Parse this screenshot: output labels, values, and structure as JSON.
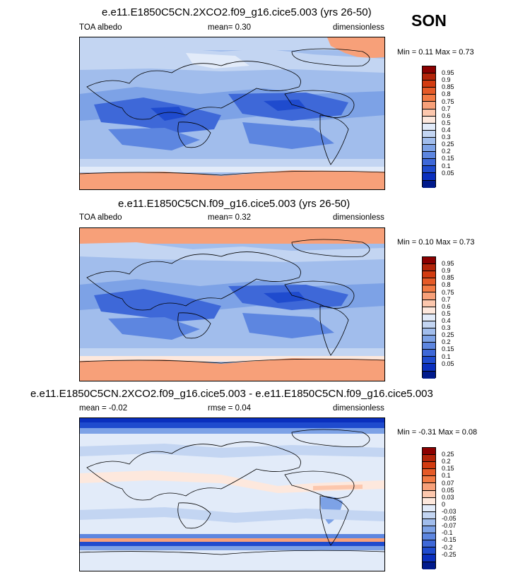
{
  "season": "SON",
  "colorbar_abs": {
    "colors": [
      "#8b0000",
      "#b32409",
      "#d23b10",
      "#e55a27",
      "#f27a44",
      "#f7a079",
      "#fcc7ad",
      "#fde8dd",
      "#e2ebf9",
      "#c3d5f2",
      "#a1bdec",
      "#7da2e6",
      "#5d86e0",
      "#3e68d8",
      "#1f4bce",
      "#0a2fbe",
      "#001a8c"
    ],
    "labels": [
      "0.95",
      "0.9",
      "0.85",
      "0.8",
      "0.75",
      "0.7",
      "0.6",
      "0.5",
      "0.4",
      "0.3",
      "0.25",
      "0.2",
      "0.15",
      "0.1",
      "0.05"
    ]
  },
  "colorbar_diff": {
    "colors": [
      "#8b0000",
      "#b32409",
      "#d23b10",
      "#e55a27",
      "#f27a44",
      "#f7a079",
      "#fcc7ad",
      "#fde8dd",
      "#e2ebf9",
      "#c3d5f2",
      "#a1bdec",
      "#7da2e6",
      "#5d86e0",
      "#3e68d8",
      "#1f4bce",
      "#0a2fbe",
      "#001a8c"
    ],
    "labels": [
      "0.25",
      "0.2",
      "0.15",
      "0.1",
      "0.07",
      "0.05",
      "0.03",
      "0",
      "-0.03",
      "-0.05",
      "-0.07",
      "-0.1",
      "-0.15",
      "-0.2",
      "-0.25"
    ]
  },
  "panels": [
    {
      "title": "e.e11.E1850C5CN.2XCO2.f09_g16.cice5.003 (yrs 26-50)",
      "left": "TOA albedo",
      "mid": "mean=   0.30",
      "right": "dimensionless",
      "minmax": "Min =   0.11 Max =   0.73"
    },
    {
      "title": "e.e11.E1850C5CN.f09_g16.cice5.003 (yrs 26-50)",
      "left": "TOA albedo",
      "mid": "mean=   0.32",
      "right": "dimensionless",
      "minmax": "Min =   0.10 Max =   0.73"
    },
    {
      "title": "e.e11.E1850C5CN.2XCO2.f09_g16.cice5.003 - e.e11.E1850C5CN.f09_g16.cice5.003",
      "left": "mean =  -0.02",
      "mid": "rmse =   0.04",
      "right": "dimensionless",
      "minmax": "Min =  -0.31 Max =   0.08"
    }
  ]
}
